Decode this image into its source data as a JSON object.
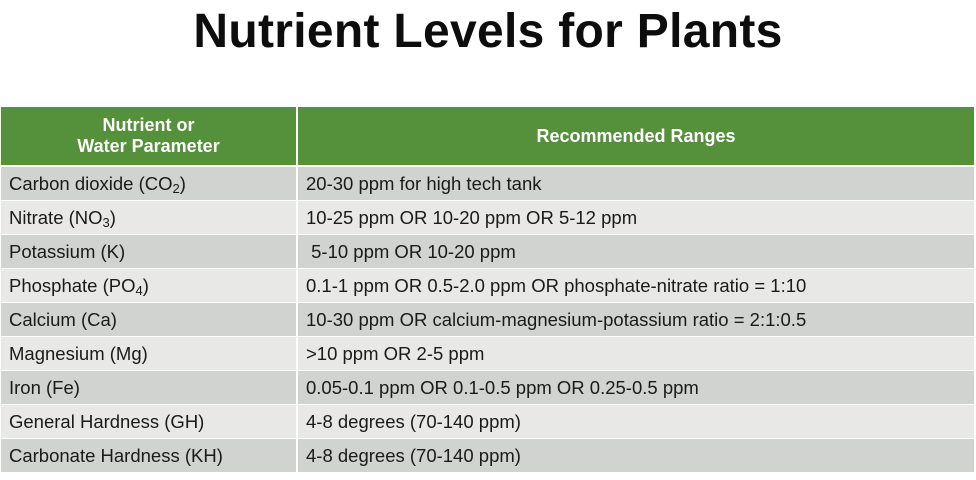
{
  "title": "Nutrient Levels for Plants",
  "table": {
    "headers": {
      "parameter_line1": "Nutrient or",
      "parameter_line2": "Water Parameter",
      "ranges": "Recommended Ranges"
    },
    "rows": [
      {
        "name": "Carbon dioxide (CO",
        "sub": "2",
        "tail": ")",
        "range": "20-30 ppm for high tech tank"
      },
      {
        "name": "Nitrate (NO",
        "sub": "3",
        "tail": ")",
        "range": "10-25 ppm OR 10-20 ppm OR 5-12 ppm"
      },
      {
        "name": "Potassium (K)",
        "sub": "",
        "tail": "",
        "range": " 5-10 ppm OR 10-20 ppm"
      },
      {
        "name": "Phosphate (PO",
        "sub": "4",
        "tail": ")",
        "range": "0.1-1 ppm OR 0.5-2.0 ppm OR phosphate-nitrate ratio = 1:10"
      },
      {
        "name": "Calcium (Ca)",
        "sub": "",
        "tail": "",
        "range": "10-30 ppm OR calcium-magnesium-potassium ratio = 2:1:0.5"
      },
      {
        "name": "Magnesium (Mg)",
        "sub": "",
        "tail": "",
        "range": ">10 ppm OR 2-5 ppm"
      },
      {
        "name": "Iron (Fe)",
        "sub": "",
        "tail": "",
        "range": "0.05-0.1 ppm OR 0.1-0.5 ppm OR 0.25-0.5 ppm"
      },
      {
        "name": "General Hardness (GH)",
        "sub": "",
        "tail": "",
        "range": "4-8 degrees (70-140 ppm)"
      },
      {
        "name": "Carbonate Hardness (KH)",
        "sub": "",
        "tail": "",
        "range": "4-8 degrees (70-140 ppm)"
      }
    ]
  },
  "colors": {
    "header_bg": "#55913a",
    "row_dark": "#d1d3d0",
    "row_light": "#e8e9e7"
  }
}
